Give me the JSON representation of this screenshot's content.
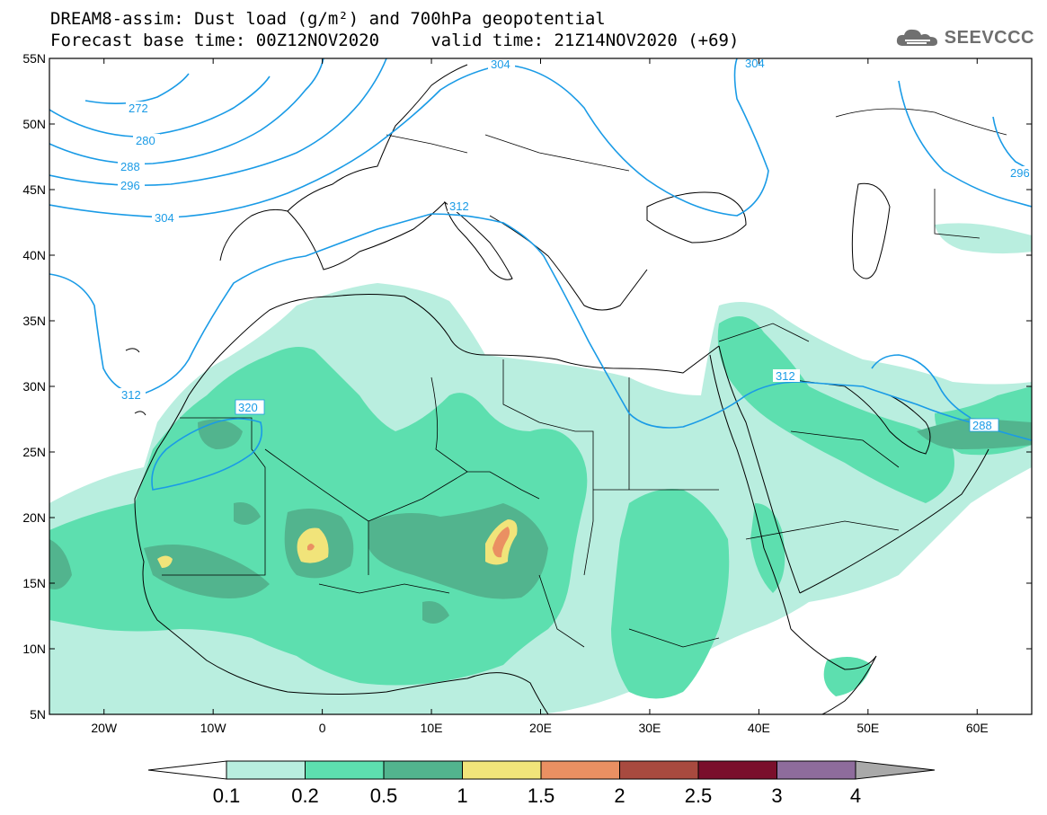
{
  "header": {
    "line1": "DREAM8-assim: Dust load (g/m²) and 700hPa geopotential",
    "line2": "Forecast base time: 00Z12NOV2020     valid time: 21Z14NOV2020 (+69)"
  },
  "logo": {
    "text": "SEEVCCC",
    "icon": "cloud-logo-icon"
  },
  "map": {
    "lon_range": [
      -25,
      65
    ],
    "lat_range": [
      5,
      55
    ],
    "lat_ticks": [
      "55N",
      "50N",
      "45N",
      "40N",
      "35N",
      "30N",
      "25N",
      "20N",
      "15N",
      "10N",
      "5N"
    ],
    "lon_ticks": [
      "20W",
      "10W",
      "0",
      "10E",
      "20E",
      "30E",
      "40E",
      "50E",
      "60E"
    ],
    "contour_color": "#1a9be6",
    "contour_labels": [
      "272",
      "280",
      "288",
      "296",
      "304",
      "304",
      "304",
      "312",
      "320",
      "312",
      "312",
      "288",
      "296"
    ]
  },
  "colorbar": {
    "levels": [
      "0.1",
      "0.2",
      "0.5",
      "1",
      "1.5",
      "2",
      "2.5",
      "3",
      "4"
    ],
    "colors": [
      "#ffffff",
      "#b9eedf",
      "#5ddfaf",
      "#52b48e",
      "#f1e47a",
      "#ea9062",
      "#a84a3f",
      "#7a0f2c",
      "#8e6c9c",
      "#a9a9a9"
    ]
  }
}
